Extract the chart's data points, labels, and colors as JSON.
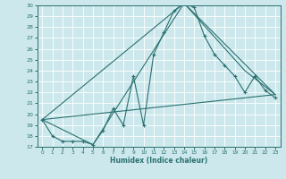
{
  "xlabel": "Humidex (Indice chaleur)",
  "bg_color": "#cce8ec",
  "grid_color": "#b8d8dc",
  "line_color": "#2a7070",
  "ylim": [
    17,
    30
  ],
  "xlim": [
    -0.5,
    23.5
  ],
  "yticks": [
    17,
    18,
    19,
    20,
    21,
    22,
    23,
    24,
    25,
    26,
    27,
    28,
    29,
    30
  ],
  "xticks": [
    0,
    1,
    2,
    3,
    4,
    5,
    6,
    7,
    8,
    9,
    10,
    11,
    12,
    13,
    14,
    15,
    16,
    17,
    18,
    19,
    20,
    21,
    22,
    23
  ],
  "line1_x": [
    0,
    1,
    2,
    3,
    4,
    5,
    6,
    7,
    8,
    9,
    10,
    11,
    12,
    13,
    14,
    15,
    16,
    17,
    18,
    19,
    20,
    21,
    22,
    23
  ],
  "line1_y": [
    19.5,
    18.0,
    17.5,
    17.5,
    17.5,
    17.2,
    18.5,
    20.5,
    19.0,
    23.5,
    19.0,
    25.5,
    27.5,
    29.5,
    30.2,
    29.8,
    27.2,
    25.5,
    24.5,
    23.5,
    22.0,
    23.5,
    22.2,
    21.5
  ],
  "line2_x": [
    0,
    5,
    14,
    20,
    23
  ],
  "line2_y": [
    19.5,
    17.2,
    30.2,
    24.0,
    21.8
  ],
  "line3_x": [
    0,
    14,
    23
  ],
  "line3_y": [
    19.5,
    30.2,
    21.8
  ],
  "line4_x": [
    0,
    23
  ],
  "line4_y": [
    19.5,
    21.8
  ]
}
